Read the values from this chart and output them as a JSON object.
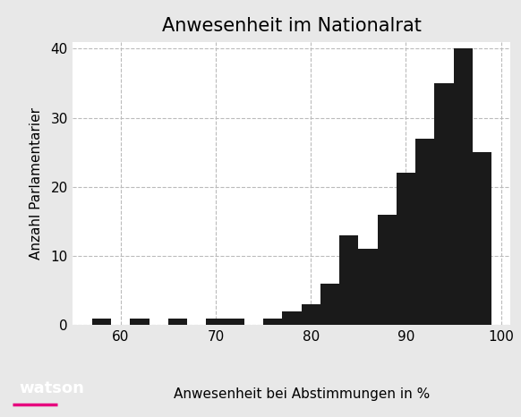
{
  "title": "Anwesenheit im Nationalrat",
  "xlabel": "Anwesenheit bei Abstimmungen in %",
  "ylabel": "Anzahl Parlamentarier",
  "bar_color": "#1a1a1a",
  "background_color": "#e8e8e8",
  "plot_bg_color": "#ffffff",
  "grid_color": "#bbbbbb",
  "xlim": [
    55,
    101
  ],
  "ylim": [
    0,
    41
  ],
  "yticks": [
    0,
    10,
    20,
    30,
    40
  ],
  "xticks": [
    60,
    70,
    80,
    90,
    100
  ],
  "bin_edges": [
    55,
    57,
    59,
    61,
    63,
    65,
    67,
    69,
    71,
    73,
    75,
    77,
    79,
    81,
    83,
    85,
    87,
    89,
    91,
    93,
    95,
    97,
    99,
    101
  ],
  "bin_heights": [
    0,
    1,
    0,
    1,
    0,
    1,
    0,
    1,
    1,
    0,
    1,
    2,
    3,
    6,
    13,
    11,
    16,
    22,
    27,
    35,
    40,
    25,
    0
  ],
  "watson_bg": "#1a1a1a",
  "watson_text": "watson",
  "watson_text_color": "#ffffff",
  "watson_underline_color": "#e6007e"
}
